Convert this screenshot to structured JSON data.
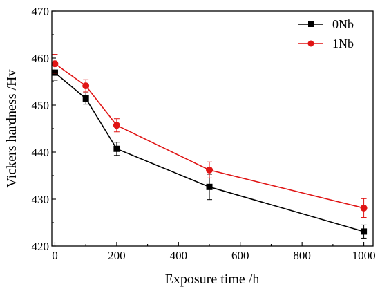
{
  "chart_data": {
    "type": "line",
    "title": "",
    "xlabel": "Exposure time /h",
    "ylabel": "Vickers hardness /Hv",
    "xlim": [
      -10,
      1030
    ],
    "ylim": [
      420,
      470
    ],
    "xticks": [
      0,
      200,
      400,
      600,
      800,
      1000
    ],
    "yticks": [
      420,
      430,
      440,
      450,
      460,
      470
    ],
    "grid": false,
    "legend_position": "top-right",
    "series": [
      {
        "name": "0Nb",
        "color": "#000000",
        "marker": "square",
        "x": [
          0,
          100,
          200,
          500,
          1000
        ],
        "y": [
          456.9,
          451.4,
          440.7,
          432.6,
          423.1
        ],
        "error": [
          1.6,
          1.2,
          1.4,
          2.7,
          1.4
        ]
      },
      {
        "name": "1Nb",
        "color": "#e01414",
        "marker": "circle",
        "x": [
          0,
          100,
          200,
          500,
          1000
        ],
        "y": [
          458.8,
          454.1,
          445.7,
          436.2,
          428.1
        ],
        "error": [
          2.0,
          1.3,
          1.4,
          1.7,
          2.0
        ]
      }
    ]
  }
}
